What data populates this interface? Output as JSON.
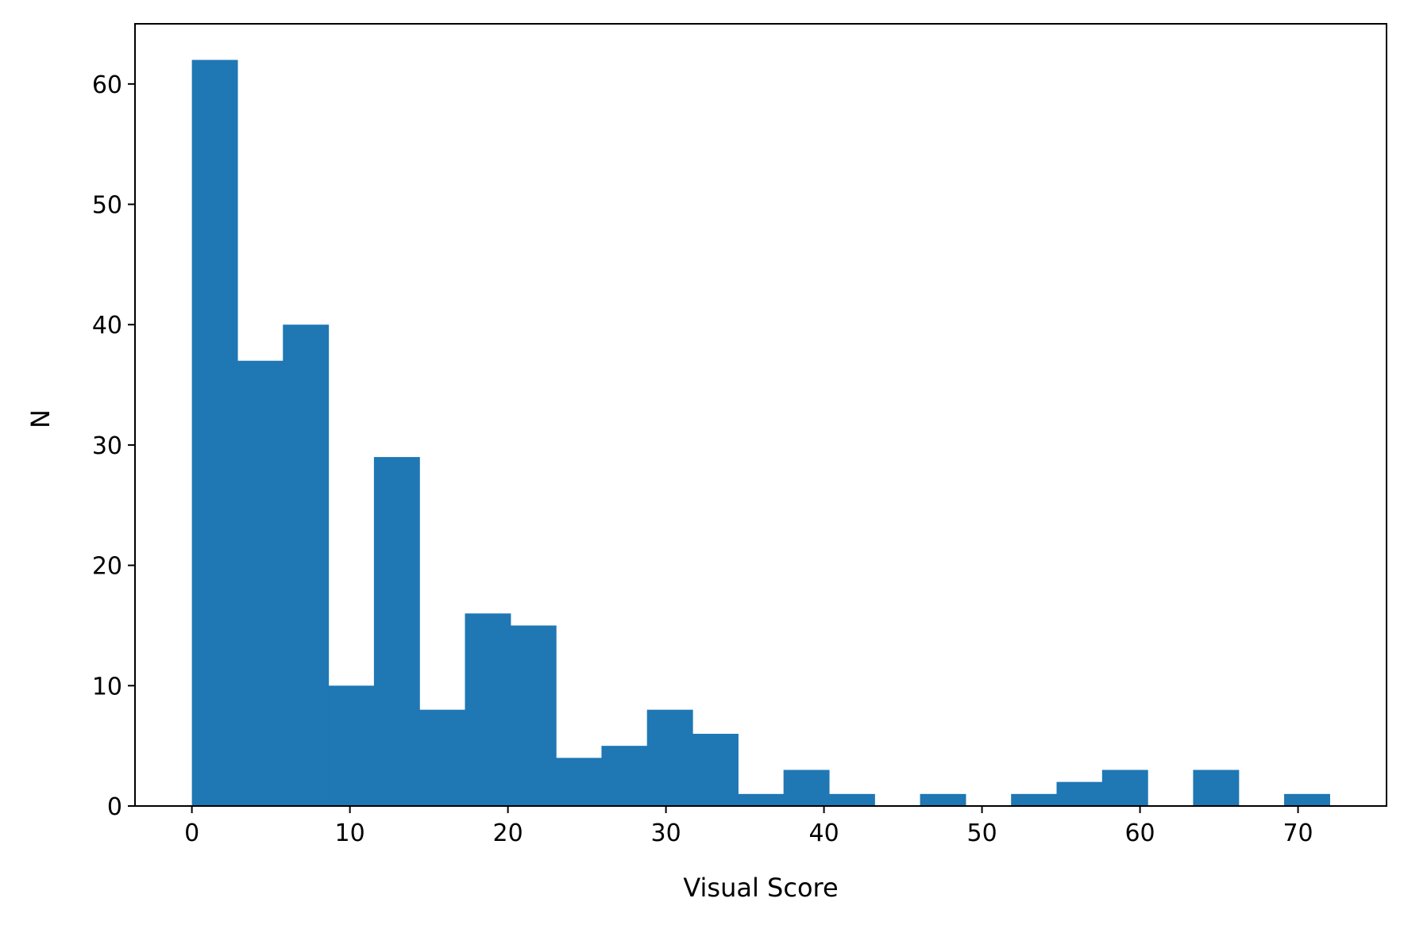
{
  "chart_data": {
    "type": "bar",
    "title": "",
    "xlabel": "Visual Score",
    "ylabel": "N",
    "xlim": [
      -3.6,
      75.6
    ],
    "ylim": [
      0,
      65
    ],
    "xticks": [
      0,
      10,
      20,
      30,
      40,
      50,
      60,
      70
    ],
    "yticks": [
      0,
      10,
      20,
      30,
      40,
      50,
      60
    ],
    "grid": false,
    "bar_color": "#1f77b4",
    "bins": {
      "start": 0,
      "width": 2.88,
      "counts": [
        62,
        37,
        40,
        10,
        29,
        8,
        16,
        15,
        4,
        5,
        8,
        6,
        1,
        3,
        1,
        0,
        1,
        0,
        1,
        2,
        3,
        0,
        3,
        0,
        1
      ]
    }
  }
}
